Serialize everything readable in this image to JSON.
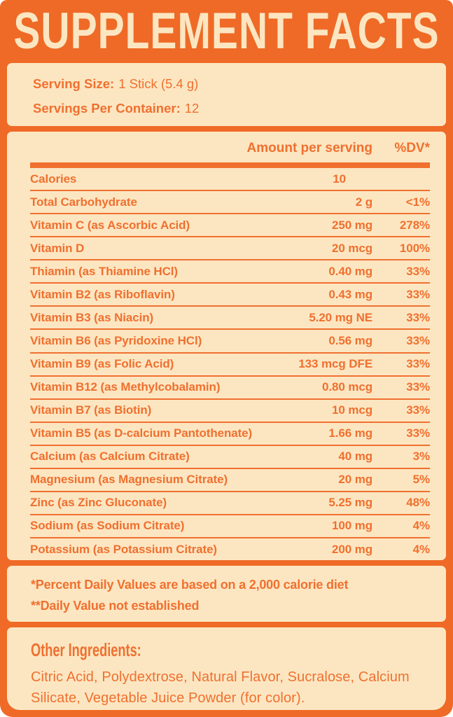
{
  "colors": {
    "orange": "#EF6A26",
    "cream": "#FCE6C2",
    "text": "#F0702F"
  },
  "header": {
    "title": "SUPPLEMENT FACTS"
  },
  "serving_info": {
    "serving_size": {
      "label": "Serving Size:",
      "value": "1 Stick (5.4 g)"
    },
    "servings_per_container": {
      "label": "Servings Per Container:",
      "value": "12"
    }
  },
  "nutrition_table": {
    "columns": {
      "amount": "Amount per serving",
      "dv": "%DV*"
    },
    "rows": [
      {
        "label": "Calories",
        "amount": "10",
        "dv": ""
      },
      {
        "label": "Total Carbohydrate",
        "amount": "2 g",
        "dv": "<1%"
      },
      {
        "label": "Vitamin C (as Ascorbic Acid)",
        "amount": "250 mg",
        "dv": "278%"
      },
      {
        "label": "Vitamin D",
        "amount": "20 mcg",
        "dv": "100%"
      },
      {
        "label": "Thiamin (as Thiamine HCl)",
        "amount": "0.40 mg",
        "dv": "33%"
      },
      {
        "label": "Vitamin B2 (as Riboflavin)",
        "amount": "0.43 mg",
        "dv": "33%"
      },
      {
        "label": "Vitamin B3 (as Niacin)",
        "amount": "5.20 mg NE",
        "dv": "33%"
      },
      {
        "label": "Vitamin B6 (as Pyridoxine HCl)",
        "amount": "0.56 mg",
        "dv": "33%"
      },
      {
        "label": "Vitamin B9 (as Folic Acid)",
        "amount": "133 mcg DFE",
        "dv": "33%"
      },
      {
        "label": "Vitamin B12 (as Methylcobalamin)",
        "amount": "0.80 mcg",
        "dv": "33%"
      },
      {
        "label": "Vitamin B7 (as Biotin)",
        "amount": "10 mcg",
        "dv": "33%"
      },
      {
        "label": "Vitamin B5 (as D-calcium Pantothenate)",
        "amount": "1.66 mg",
        "dv": "33%"
      },
      {
        "label": "Calcium (as Calcium Citrate)",
        "amount": "40 mg",
        "dv": "3%"
      },
      {
        "label": "Magnesium (as Magnesium Citrate)",
        "amount": "20 mg",
        "dv": "5%"
      },
      {
        "label": "Zinc (as Zinc Gluconate)",
        "amount": "5.25 mg",
        "dv": "48%"
      },
      {
        "label": "Sodium (as Sodium Citrate)",
        "amount": "100 mg",
        "dv": "4%"
      },
      {
        "label": "Potassium (as Potassium Citrate)",
        "amount": "200 mg",
        "dv": "4%"
      }
    ]
  },
  "footnotes": {
    "daily_value": "*Percent Daily Values are based on a 2,000 calorie diet",
    "not_established": "**Daily Value not established"
  },
  "other_ingredients": {
    "heading": "Other Ingredients:",
    "text": "Citric Acid, Polydextrose, Natural Flavor, Sucralose, Calcium Silicate, Vegetable Juice Powder (for color)."
  }
}
